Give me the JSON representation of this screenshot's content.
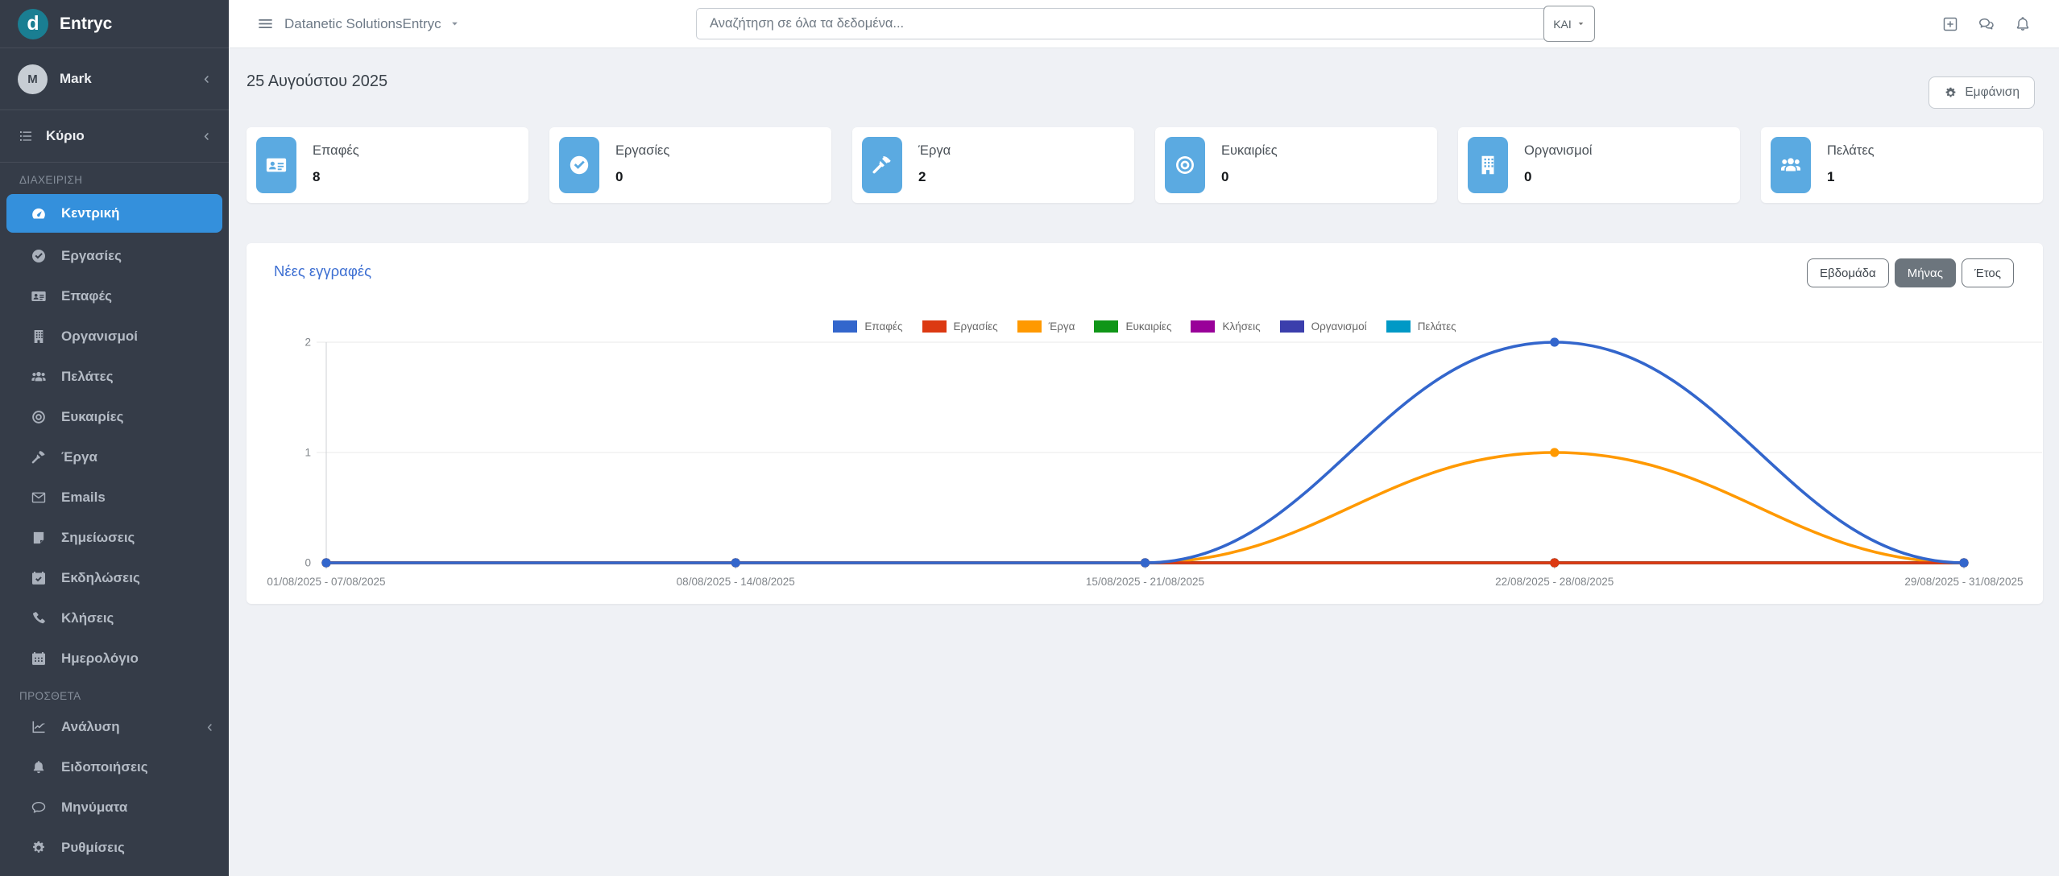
{
  "brand": {
    "name": "Entryc",
    "logo_letter": "d",
    "logo_bg": "#1a7e92"
  },
  "topbar": {
    "org_selector": {
      "label": "Datanetic SolutionsEntryc",
      "icon": "caret-down"
    },
    "search": {
      "placeholder": "Αναζήτηση σε όλα τα δεδομένα...",
      "operator_button": {
        "label": "ΚΑΙ",
        "icon": "caret-down"
      }
    },
    "action_icons": [
      {
        "key": "add",
        "icon": "plus-square"
      },
      {
        "key": "messages",
        "icon": "chats"
      },
      {
        "key": "notifications",
        "icon": "bell"
      }
    ]
  },
  "sidebar": {
    "user": {
      "initial": "M",
      "name": "Mark",
      "chevron_icon": "chevron-left"
    },
    "primary_nav": {
      "label": "Κύριο",
      "icon": "list",
      "chevron_icon": "chevron-left"
    },
    "sections": [
      {
        "label": "ΔΙΑΧΕΙΡΙΣΗ",
        "items": [
          {
            "key": "dashboard",
            "label": "Κεντρική",
            "icon": "gauge",
            "active": true
          },
          {
            "key": "tasks",
            "label": "Εργασίες",
            "icon": "check-circle"
          },
          {
            "key": "contacts",
            "label": "Επαφές",
            "icon": "id-card"
          },
          {
            "key": "organizations",
            "label": "Οργανισμοί",
            "icon": "building"
          },
          {
            "key": "customers",
            "label": "Πελάτες",
            "icon": "users"
          },
          {
            "key": "opportunities",
            "label": "Ευκαιρίες",
            "icon": "bullseye"
          },
          {
            "key": "projects",
            "label": "Έργα",
            "icon": "hammer"
          },
          {
            "key": "emails",
            "label": "Emails",
            "icon": "envelope"
          },
          {
            "key": "notes",
            "label": "Σημείωσεις",
            "icon": "note"
          },
          {
            "key": "events",
            "label": "Εκδηλώσεις",
            "icon": "calendar-check"
          },
          {
            "key": "calls",
            "label": "Κλήσεις",
            "icon": "phone"
          },
          {
            "key": "calendar",
            "label": "Ημερολόγιο",
            "icon": "calendar"
          }
        ]
      },
      {
        "label": "ΠΡΟΣΘΕΤΑ",
        "items": [
          {
            "key": "analysis",
            "label": "Ανάλυση",
            "icon": "chart-line",
            "chevron": true
          },
          {
            "key": "notifications",
            "label": "Ειδοποιήσεις",
            "icon": "bell"
          },
          {
            "key": "messages",
            "label": "Μηνύματα",
            "icon": "chat"
          },
          {
            "key": "settings",
            "label": "Ρυθμίσεις",
            "icon": "gear"
          }
        ]
      }
    ]
  },
  "page": {
    "date_heading": "25 Αυγούστου 2025",
    "display_button": {
      "label": "Εμφάνιση",
      "icon": "gear"
    }
  },
  "stat_cards": [
    {
      "key": "contacts",
      "label": "Επαφές",
      "value": "8",
      "icon": "id-card"
    },
    {
      "key": "tasks",
      "label": "Εργασίες",
      "value": "0",
      "icon": "check-circle"
    },
    {
      "key": "projects",
      "label": "Έργα",
      "value": "2",
      "icon": "hammer"
    },
    {
      "key": "opportunities",
      "label": "Ευκαιρίες",
      "value": "0",
      "icon": "bullseye"
    },
    {
      "key": "organizations",
      "label": "Οργανισμοί",
      "value": "0",
      "icon": "building"
    },
    {
      "key": "customers",
      "label": "Πελάτες",
      "value": "1",
      "icon": "users"
    }
  ],
  "chart_card": {
    "title": "Νέες εγγραφές",
    "period_buttons": [
      {
        "key": "week",
        "label": "Εβδομάδα",
        "active": false
      },
      {
        "key": "month",
        "label": "Μήνας",
        "active": true
      },
      {
        "key": "year",
        "label": "Έτος",
        "active": false
      }
    ]
  },
  "chart_data": {
    "type": "line",
    "categories": [
      "01/08/2025 - 07/08/2025",
      "08/08/2025 - 14/08/2025",
      "15/08/2025 - 21/08/2025",
      "22/08/2025 - 28/08/2025",
      "29/08/2025 - 31/08/2025"
    ],
    "series": [
      {
        "name": "Επαφές",
        "color": "#3366CC",
        "values": [
          0,
          0,
          0,
          2,
          0
        ]
      },
      {
        "name": "Εργασίες",
        "color": "#DC3912",
        "values": [
          0,
          0,
          0,
          0,
          0
        ]
      },
      {
        "name": "Έργα",
        "color": "#FF9900",
        "values": [
          0,
          0,
          0,
          1,
          0
        ]
      },
      {
        "name": "Ευκαιρίες",
        "color": "#109618",
        "values": [
          0,
          0,
          0,
          0,
          0
        ]
      },
      {
        "name": "Κλήσεις",
        "color": "#990099",
        "values": [
          0,
          0,
          0,
          0,
          0
        ]
      },
      {
        "name": "Οργανισμοί",
        "color": "#3B3EAC",
        "values": [
          0,
          0,
          0,
          0,
          0
        ]
      },
      {
        "name": "Πελάτες",
        "color": "#0099C6",
        "values": [
          0,
          0,
          0,
          0,
          0
        ]
      }
    ],
    "ylim": [
      0,
      2
    ],
    "yticks": [
      0,
      1,
      2
    ],
    "grid": true,
    "legend_position": "top",
    "curve": "smooth"
  },
  "colors": {
    "sidebar_active": "#3490dc",
    "stat_icon_bg": "#5baae1",
    "title_blue": "#3d6fd2"
  }
}
